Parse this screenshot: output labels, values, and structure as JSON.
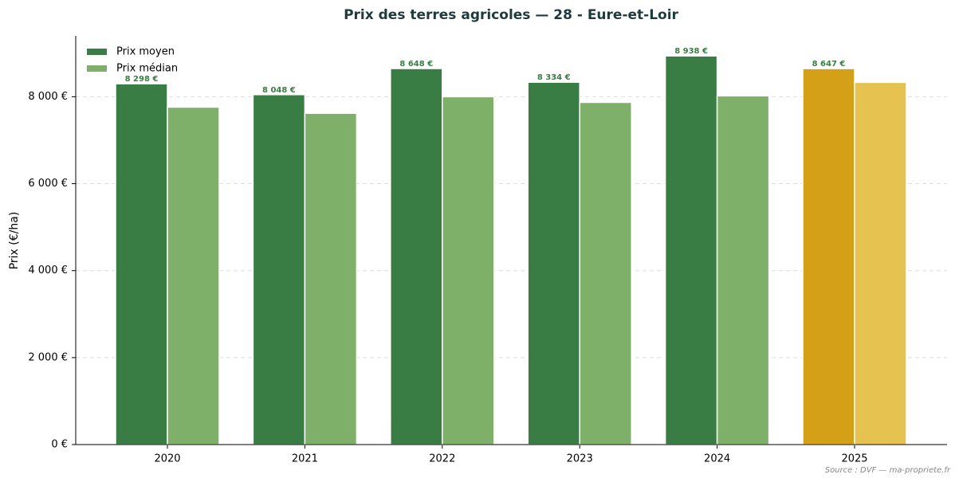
{
  "chart_data": {
    "type": "bar",
    "title": "Prix des terres agricoles — 28 - Eure-et-Loir",
    "y_label": "Prix (€/ha)",
    "source": "Source : DVF — ma-propriete.fr",
    "categories": [
      "2020",
      "2021",
      "2022",
      "2023",
      "2024",
      "2025"
    ],
    "series": [
      {
        "name": "Prix moyen",
        "color": "#3a7d44",
        "colors": [
          "#3a7d44",
          "#3a7d44",
          "#3a7d44",
          "#3a7d44",
          "#3a7d44",
          "#d4a017"
        ],
        "values": [
          8298,
          8048,
          8648,
          8334,
          8938,
          8647
        ],
        "value_labels": [
          "8 298 €",
          "8 048 €",
          "8 648 €",
          "8 334 €",
          "8 938 €",
          "8 647 €"
        ]
      },
      {
        "name": "Prix médian",
        "color": "#7fb069",
        "colors": [
          "#7fb069",
          "#7fb069",
          "#7fb069",
          "#7fb069",
          "#7fb069",
          "#e6c350"
        ],
        "values": [
          7760,
          7620,
          8000,
          7870,
          8020,
          8330
        ]
      }
    ],
    "ylim": [
      0,
      9400
    ],
    "yticks": [
      {
        "value": 0,
        "label": "0 €"
      },
      {
        "value": 2000,
        "label": "2 000 €"
      },
      {
        "value": 4000,
        "label": "4 000 €"
      },
      {
        "value": 6000,
        "label": "6 000 €"
      },
      {
        "value": 8000,
        "label": "8 000 €"
      }
    ],
    "grid": true,
    "legend": "upper left"
  }
}
